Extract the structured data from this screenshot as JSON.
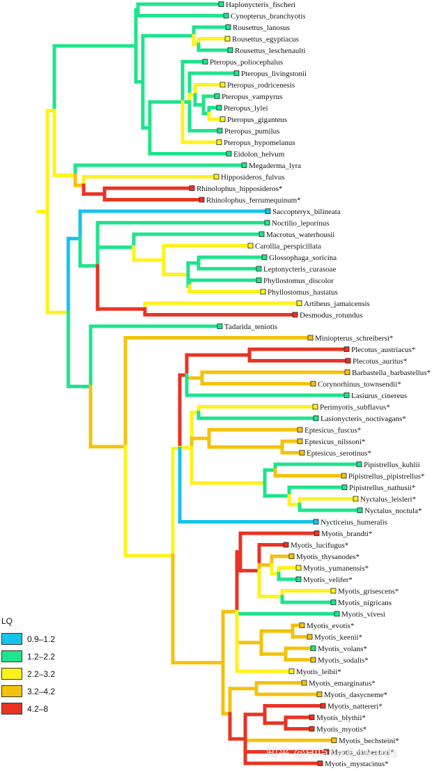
{
  "legend": {
    "title": "LQ",
    "items": [
      {
        "label": "0.9–1.2",
        "color": "#16c3ee"
      },
      {
        "label": "1.2–2.2",
        "color": "#1ee48c"
      },
      {
        "label": "2.2–3.2",
        "color": "#fff21a"
      },
      {
        "label": "3.2–4.2",
        "color": "#f4c20d"
      },
      {
        "label": "4.2–8",
        "color": "#ea3323"
      }
    ]
  },
  "taxa": [
    {
      "name": "Haplonycteris_fischeri",
      "lq": "1.2–2.2"
    },
    {
      "name": "Cynopterus_branchyotis",
      "lq": "1.2–2.2"
    },
    {
      "name": "Rousettus_lanosus",
      "lq": "1.2–2.2"
    },
    {
      "name": "Rousettus_egyptiacus",
      "lq": "2.2–3.2"
    },
    {
      "name": "Rousettus_leschenaulti",
      "lq": "1.2–2.2"
    },
    {
      "name": "Pteropus_poliocephalus",
      "lq": "1.2–2.2"
    },
    {
      "name": "Pteropus_livingstonii",
      "lq": "1.2–2.2"
    },
    {
      "name": "Pteropus_rodricenesis",
      "lq": "2.2–3.2"
    },
    {
      "name": "Pteropus_vampyrus",
      "lq": "1.2–2.2"
    },
    {
      "name": "Pteropus_lylei",
      "lq": "1.2–2.2"
    },
    {
      "name": "Pteropus_giganteus",
      "lq": "2.2–3.2"
    },
    {
      "name": "Pteropus_pumilus",
      "lq": "1.2–2.2"
    },
    {
      "name": "Pteropus_hypomelanus",
      "lq": "2.2–3.2"
    },
    {
      "name": "Eidolon_helvum",
      "lq": "1.2–2.2"
    },
    {
      "name": "Megaderma_lyra",
      "lq": "1.2–2.2"
    },
    {
      "name": "Hipposideros_fulvus",
      "lq": "2.2–3.2"
    },
    {
      "name": "Rhinolophus_hipposideros*",
      "lq": "4.2–8"
    },
    {
      "name": "Rhinolophus_ferrumequinum*",
      "lq": "4.2–8"
    },
    {
      "name": "Saccopteryx_bilineata",
      "lq": "0.9–1.2"
    },
    {
      "name": "Noctilio_leporinus",
      "lq": "1.2–2.2"
    },
    {
      "name": "Macrotus_waterhousii",
      "lq": "1.2–2.2"
    },
    {
      "name": "Carollia_perspicillata",
      "lq": "2.2–3.2"
    },
    {
      "name": "Glossophaga_soricina",
      "lq": "1.2–2.2"
    },
    {
      "name": "Leptonycteris_curasoae",
      "lq": "1.2–2.2"
    },
    {
      "name": "Phyllostomus_discolor",
      "lq": "1.2–2.2"
    },
    {
      "name": "Phyllostomus_hastatus",
      "lq": "2.2–3.2"
    },
    {
      "name": "Artibeus_jamaicensis",
      "lq": "2.2–3.2"
    },
    {
      "name": "Desmodus_rotundus",
      "lq": "4.2–8"
    },
    {
      "name": "Tadarida_teniotis",
      "lq": "1.2–2.2"
    },
    {
      "name": "Miniopterus_schreibersi*",
      "lq": "3.2–4.2"
    },
    {
      "name": "Plecotus_austriacus*",
      "lq": "4.2–8"
    },
    {
      "name": "Plecotus_auritus*",
      "lq": "4.2–8"
    },
    {
      "name": "Barbastella_barbastellus*",
      "lq": "3.2–4.2"
    },
    {
      "name": "Corynorhinus_townsendii*",
      "lq": "3.2–4.2"
    },
    {
      "name": "Lasiurus_cinereus",
      "lq": "1.2–2.2"
    },
    {
      "name": "Perimyotis_subflavus*",
      "lq": "2.2–3.2"
    },
    {
      "name": "Lasionycteris_noctivagans*",
      "lq": "1.2–2.2"
    },
    {
      "name": "Eptesicus_fuscus*",
      "lq": "3.2–4.2"
    },
    {
      "name": "Eptesicus_nilssoni*",
      "lq": "3.2–4.2"
    },
    {
      "name": "Eptesicus_serotinus*",
      "lq": "3.2–4.2"
    },
    {
      "name": "Pipistrellus_kuhlii",
      "lq": "1.2–2.2"
    },
    {
      "name": "Pipistrellus_pipistrellus*",
      "lq": "3.2–4.2"
    },
    {
      "name": "Pipistrellus_nathusii*",
      "lq": "1.2–2.2"
    },
    {
      "name": "Nyctalus_leisleri*",
      "lq": "2.2–3.2"
    },
    {
      "name": "Nyctalus_noctula*",
      "lq": "1.2–2.2"
    },
    {
      "name": "Nycticeius_humeralis",
      "lq": "0.9–1.2"
    },
    {
      "name": "Myotis_brandti*",
      "lq": "4.2–8"
    },
    {
      "name": "Myotis_lucifugus*",
      "lq": "4.2–8"
    },
    {
      "name": "Myotis_thysanodes*",
      "lq": "3.2–4.2"
    },
    {
      "name": "Myotis_yumanensis*",
      "lq": "2.2–3.2"
    },
    {
      "name": "Myotis_velifer*",
      "lq": "1.2–2.2"
    },
    {
      "name": "Myotis_grisescens*",
      "lq": "2.2–3.2"
    },
    {
      "name": "Myotis_nigricans",
      "lq": "1.2–2.2"
    },
    {
      "name": "Myotis_vivesi",
      "lq": "1.2–2.2"
    },
    {
      "name": "Myotis_evotis*",
      "lq": "3.2–4.2"
    },
    {
      "name": "Myotis_keenii*",
      "lq": "3.2–4.2"
    },
    {
      "name": "Myotis_volans*",
      "lq": "1.2–2.2"
    },
    {
      "name": "Myotis_sodalis*",
      "lq": "3.2–4.2"
    },
    {
      "name": "Myotis_leibii*",
      "lq": "2.2–3.2"
    },
    {
      "name": "Myotis_emarginatus*",
      "lq": "3.2–4.2"
    },
    {
      "name": "Myotis_dasycneme*",
      "lq": "3.2–4.2"
    },
    {
      "name": "Myotis_nattereri*",
      "lq": "4.2–8"
    },
    {
      "name": "Myotis_blythii*",
      "lq": "4.2–8"
    },
    {
      "name": "Myotis_myotis*",
      "lq": "4.2–8"
    },
    {
      "name": "Myotis_bechsteini*",
      "lq": "3.2–4.2"
    },
    {
      "name": "Myotis_daubentoni*",
      "lq": "4.2–8"
    },
    {
      "name": "Myotis_mystacinus*",
      "lq": "4.2–8"
    }
  ],
  "watermark": "知乎 @Hilarie Edwards"
}
